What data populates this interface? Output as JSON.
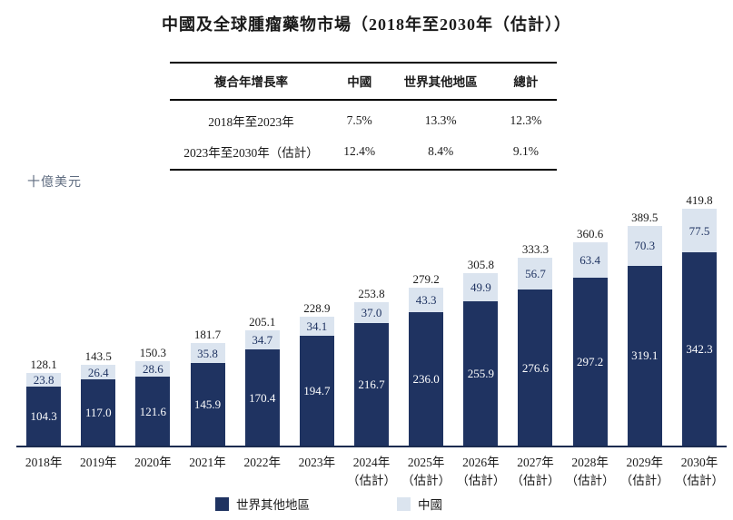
{
  "title": "中國及全球腫瘤藥物市場（2018年至2030年（估計））",
  "cagr_table": {
    "headers": [
      "複合年增長率",
      "中國",
      "世界其他地區",
      "總計"
    ],
    "rows": [
      {
        "period": "2018年至2023年",
        "china": "7.5%",
        "rest_of_world": "13.3%",
        "total": "12.3%"
      },
      {
        "period": "2023年至2030年（估計）",
        "china": "12.4%",
        "rest_of_world": "8.4%",
        "total": "9.1%"
      }
    ]
  },
  "chart_data": {
    "type": "bar",
    "stacked": true,
    "title": "中國及全球腫瘤藥物市場（2018年至2030年（估計））",
    "ylabel": "十億美元",
    "ylim": [
      0,
      419.8
    ],
    "grid": false,
    "legend_position": "bottom",
    "categories": [
      {
        "label": "2018年",
        "sublabel": ""
      },
      {
        "label": "2019年",
        "sublabel": ""
      },
      {
        "label": "2020年",
        "sublabel": ""
      },
      {
        "label": "2021年",
        "sublabel": ""
      },
      {
        "label": "2022年",
        "sublabel": ""
      },
      {
        "label": "2023年",
        "sublabel": ""
      },
      {
        "label": "2024年",
        "sublabel": "（估計）"
      },
      {
        "label": "2025年",
        "sublabel": "（估計）"
      },
      {
        "label": "2026年",
        "sublabel": "（估計）"
      },
      {
        "label": "2027年",
        "sublabel": "（估計）"
      },
      {
        "label": "2028年",
        "sublabel": "（估計）"
      },
      {
        "label": "2029年",
        "sublabel": "（估計）"
      },
      {
        "label": "2030年",
        "sublabel": "（估計）"
      }
    ],
    "series": [
      {
        "name": "世界其他地區",
        "color": "#1f3361",
        "label_color": "#ffffff",
        "values": [
          104.3,
          117.0,
          121.6,
          145.9,
          170.4,
          194.7,
          216.7,
          236.0,
          255.9,
          276.6,
          297.2,
          319.1,
          342.3
        ]
      },
      {
        "name": "中國",
        "color": "#dbe4ef",
        "label_color": "#1f3361",
        "values": [
          23.8,
          26.4,
          28.6,
          35.8,
          34.7,
          34.1,
          37.0,
          43.3,
          49.9,
          56.7,
          63.4,
          70.3,
          77.5
        ]
      }
    ],
    "totals": [
      128.1,
      143.5,
      150.3,
      181.7,
      205.1,
      228.9,
      253.8,
      279.2,
      305.8,
      333.3,
      360.6,
      389.5,
      419.8
    ]
  }
}
